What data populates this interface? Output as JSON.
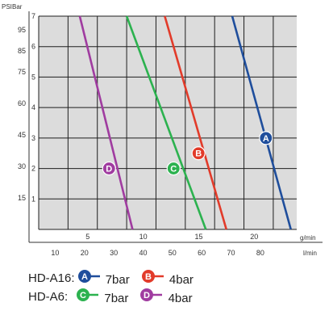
{
  "chart_data": {
    "type": "line",
    "x_axis": {
      "lower_ticks": [
        "10",
        "20",
        "30",
        "40",
        "50",
        "60",
        "70",
        "80"
      ],
      "lower_unit": "l/min",
      "upper_ticks": [
        "5",
        "10",
        "15",
        "20"
      ],
      "upper_unit": "g/min",
      "xlim": [
        0,
        88
      ]
    },
    "y_axis": {
      "unit_labels": [
        "PSI",
        "Bar"
      ],
      "bar_ticks": [
        "1",
        "2",
        "3",
        "4",
        "5",
        "6",
        "7"
      ],
      "psi_ticks": [
        "15",
        "30",
        "45",
        "60",
        "75",
        "85",
        "95"
      ],
      "ylim": [
        0,
        7
      ]
    },
    "grid": true,
    "series": [
      {
        "id": "a16-7",
        "marker": "A",
        "color": "#1f4e9c",
        "points": [
          [
            66,
            7
          ],
          [
            86,
            0
          ]
        ],
        "label_point": [
          77.5,
          3
        ]
      },
      {
        "id": "a16-4",
        "marker": "B",
        "color": "#e23b2a",
        "points": [
          [
            43,
            7
          ],
          [
            64,
            0
          ]
        ],
        "label_point": [
          54.5,
          2.5
        ]
      },
      {
        "id": "a6-7",
        "marker": "C",
        "color": "#2cb24f",
        "points": [
          [
            30,
            7
          ],
          [
            57,
            0
          ]
        ],
        "label_point": [
          46,
          2
        ]
      },
      {
        "id": "a6-4",
        "marker": "D",
        "color": "#a03ca0",
        "points": [
          [
            14,
            7
          ],
          [
            32,
            0
          ]
        ],
        "label_point": [
          24,
          2
        ]
      }
    ],
    "legend": [
      {
        "label": "HD-A16:",
        "items": [
          {
            "marker": "A",
            "color": "#1f4e9c",
            "text": "7bar"
          },
          {
            "marker": "B",
            "color": "#e23b2a",
            "text": "4bar"
          }
        ]
      },
      {
        "label": "HD-A6:",
        "items": [
          {
            "marker": "C",
            "color": "#2cb24f",
            "text": "7bar"
          },
          {
            "marker": "D",
            "color": "#a03ca0",
            "text": "4bar"
          }
        ]
      }
    ]
  }
}
